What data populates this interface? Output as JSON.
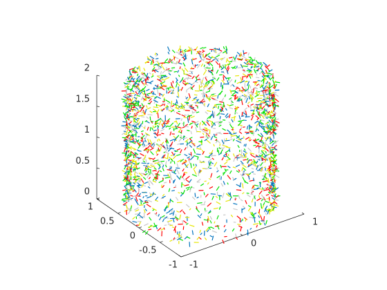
{
  "chart_data": {
    "type": "scatter3d",
    "xlim": [
      -1,
      1
    ],
    "ylim": [
      -1,
      1
    ],
    "zlim": [
      0,
      2
    ],
    "xticks": [
      -1,
      0,
      1
    ],
    "yticks": [
      -1,
      -0.5,
      0,
      0.5,
      1
    ],
    "zticks": [
      0,
      0.5,
      1,
      1.5,
      2
    ],
    "colors": [
      "#00e000",
      "#ff0000",
      "#0072bd",
      "#c8c8c8",
      "#e6e600"
    ],
    "grid": false
  }
}
